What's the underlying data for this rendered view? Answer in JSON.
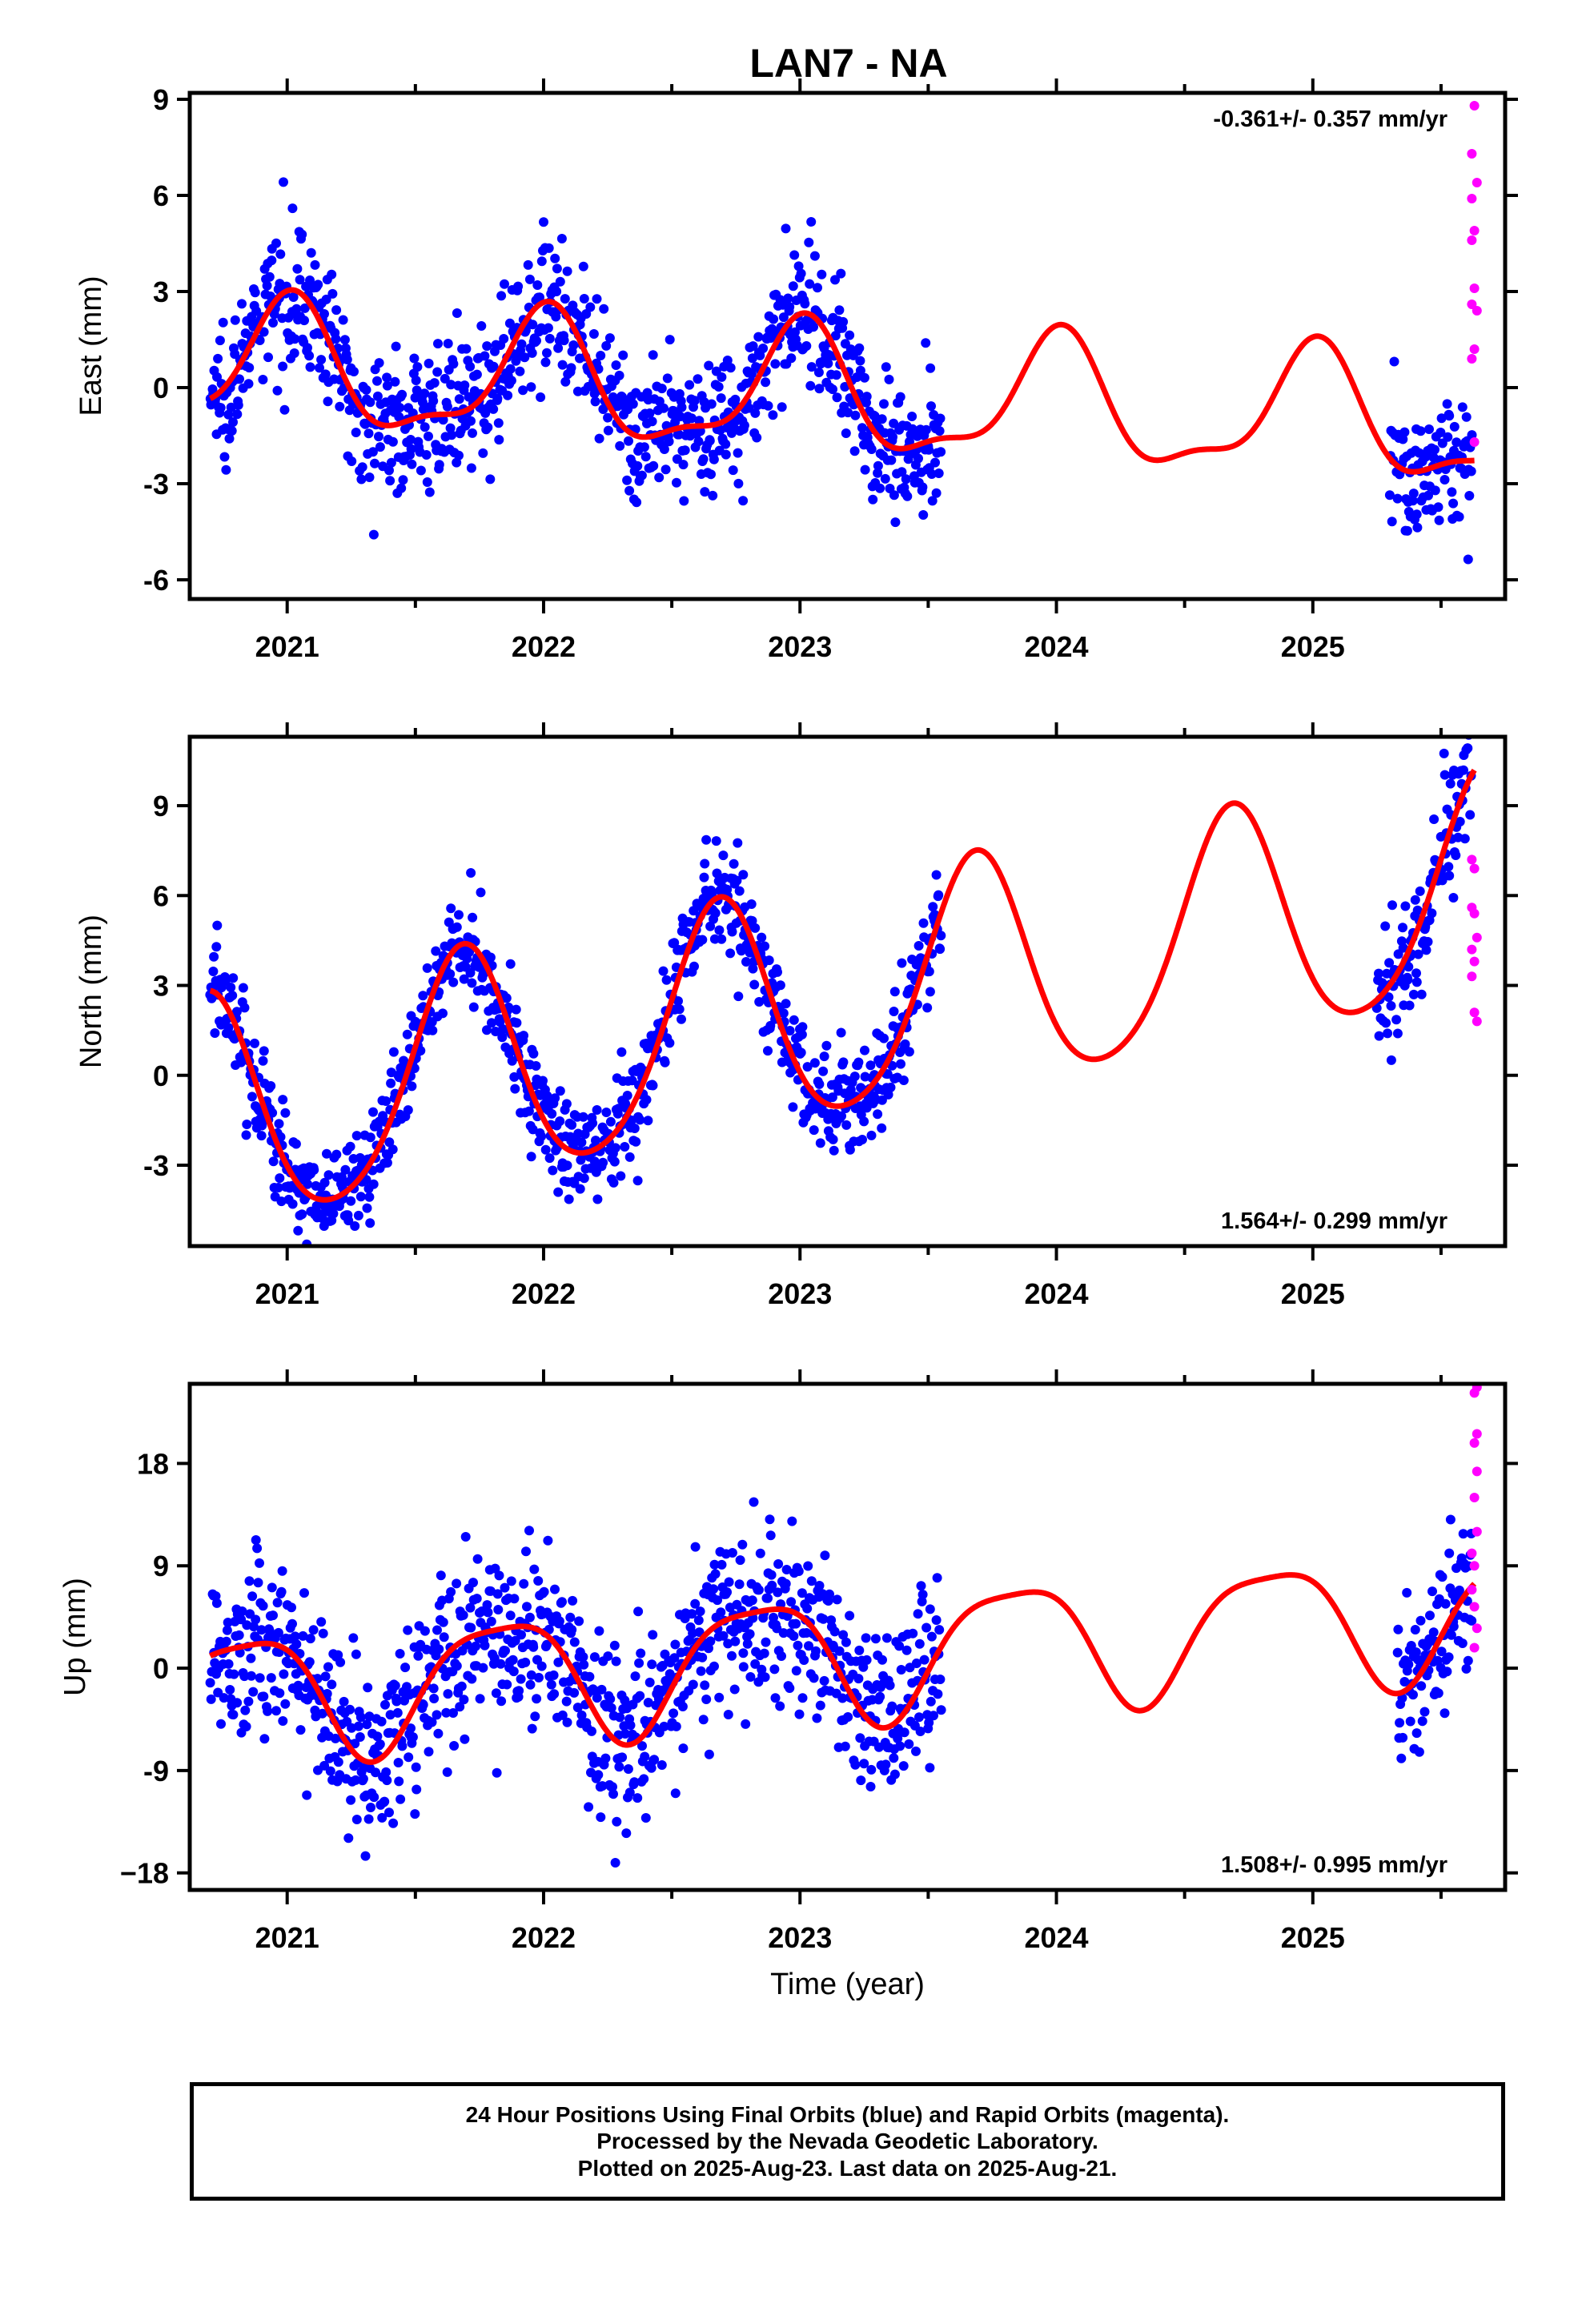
{
  "title": "LAN7 - NA",
  "footer": {
    "lines": [
      "24 Hour Positions Using Final Orbits (blue) and Rapid Orbits (magenta).",
      "Processed by the Nevada Geodetic Laboratory.",
      "Plotted on 2025-Aug-23. Last data on 2025-Aug-21."
    ]
  },
  "colors": {
    "final": "#0000ff",
    "rapid": "#ff00ff",
    "model": "#ff0000",
    "axes": "#000000"
  },
  "chart_data": [
    {
      "type": "scatter",
      "component": "East",
      "ylabel": "East (mm)",
      "xlabel": "",
      "xlim": [
        2020.62,
        2025.75
      ],
      "ylim": [
        -6.6,
        9.2
      ],
      "yticks": [
        -6,
        -3,
        0,
        3,
        6,
        9
      ],
      "xticks": [
        2021,
        2022,
        2023,
        2024,
        2025
      ],
      "xtick_labels": [
        "2021",
        "2022",
        "2023",
        "2024",
        "2025"
      ],
      "rate": "-0.361+/- 0.357 mm/yr",
      "rate_position": "top-right",
      "final_segments": [
        {
          "start": 2020.7,
          "end": 2023.55,
          "noise": 1.05
        },
        {
          "start": 2025.3,
          "end": 2025.62,
          "noise": 1.0
        }
      ],
      "model": {
        "offset": -0.2,
        "trend": -0.361,
        "reference": 2023.0,
        "harmonics": [
          [
            1.0,
            0.05,
            1.9,
            1.2
          ],
          [
            2.0,
            0.25,
            0.6,
            0.0
          ]
        ]
      },
      "rapid_points": [
        [
          2025.63,
          8.8
        ],
        [
          2025.62,
          7.3
        ],
        [
          2025.64,
          6.4
        ],
        [
          2025.62,
          5.9
        ],
        [
          2025.63,
          4.9
        ],
        [
          2025.62,
          4.6
        ],
        [
          2025.63,
          3.1
        ],
        [
          2025.62,
          2.6
        ],
        [
          2025.64,
          2.4
        ],
        [
          2025.63,
          1.2
        ],
        [
          2025.62,
          0.9
        ],
        [
          2025.63,
          -1.7
        ]
      ]
    },
    {
      "type": "scatter",
      "component": "North",
      "ylabel": "North (mm)",
      "xlabel": "",
      "xlim": [
        2020.62,
        2025.75
      ],
      "ylim": [
        -5.7,
        11.3
      ],
      "yticks": [
        -3,
        0,
        3,
        6,
        9
      ],
      "xticks": [
        2021,
        2022,
        2023,
        2024,
        2025
      ],
      "xtick_labels": [
        "2021",
        "2022",
        "2023",
        "2024",
        "2025"
      ],
      "rate": "1.564+/- 0.299 mm/yr",
      "rate_position": "bottom-right",
      "final_segments": [
        {
          "start": 2020.7,
          "end": 2023.55,
          "noise": 0.9
        },
        {
          "start": 2025.25,
          "end": 2025.62,
          "noise": 1.1
        }
      ],
      "model": {
        "offset": 2.1,
        "trend": 1.564,
        "reference": 2023.0,
        "harmonics": [
          [
            1.0,
            -3.5,
            -1.6,
            0.0
          ],
          [
            2.0,
            0.3,
            -0.4,
            0.0
          ]
        ]
      },
      "rapid_points": [
        [
          2025.62,
          7.2
        ],
        [
          2025.63,
          6.9
        ],
        [
          2025.62,
          5.6
        ],
        [
          2025.63,
          5.4
        ],
        [
          2025.64,
          4.6
        ],
        [
          2025.62,
          4.2
        ],
        [
          2025.63,
          3.8
        ],
        [
          2025.62,
          3.3
        ],
        [
          2025.63,
          2.1
        ],
        [
          2025.64,
          1.8
        ]
      ]
    },
    {
      "type": "scatter",
      "component": "Up",
      "ylabel": "Up (mm)",
      "xlabel": "Time (year)",
      "xlim": [
        2020.62,
        2025.75
      ],
      "ylim": [
        -19.5,
        25.0
      ],
      "yticks": [
        -18,
        -9,
        0,
        9,
        18
      ],
      "ytick_labels": [
        "−18",
        "-9",
        "0",
        "9",
        "18"
      ],
      "xticks": [
        2021,
        2022,
        2023,
        2024,
        2025
      ],
      "xtick_labels": [
        "2021",
        "2022",
        "2023",
        "2024",
        "2025"
      ],
      "rate": "1.508+/- 0.995 mm/yr",
      "rate_position": "bottom-right",
      "final_segments": [
        {
          "start": 2020.7,
          "end": 2023.55,
          "noise": 3.8
        },
        {
          "start": 2025.33,
          "end": 2025.62,
          "noise": 3.8
        }
      ],
      "model": {
        "offset": 1.0,
        "trend": 1.508,
        "reference": 2023.0,
        "harmonics": [
          [
            1.0,
            -4.7,
            2.8,
            0.0
          ],
          [
            2.0,
            1.0,
            0.8,
            0.0
          ]
        ]
      },
      "rapid_points": [
        [
          2025.64,
          24.7
        ],
        [
          2025.63,
          24.2
        ],
        [
          2025.64,
          20.6
        ],
        [
          2025.63,
          19.8
        ],
        [
          2025.64,
          17.3
        ],
        [
          2025.63,
          15.0
        ],
        [
          2025.64,
          12.0
        ],
        [
          2025.62,
          10.1
        ],
        [
          2025.63,
          9.0
        ],
        [
          2025.62,
          6.9
        ],
        [
          2025.63,
          5.4
        ],
        [
          2025.64,
          3.5
        ],
        [
          2025.63,
          1.8
        ]
      ]
    }
  ]
}
